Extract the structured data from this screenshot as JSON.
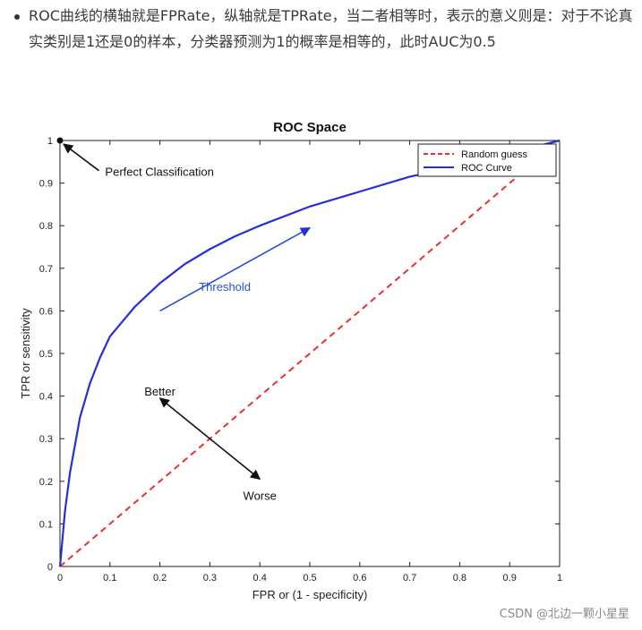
{
  "paragraph": {
    "text": "ROC曲线的横轴就是FPRate，纵轴就是TPRate，当二者相等时，表示的意义则是：对于不论真实类别是1还是0的样本，分类器预测为1的概率是相等的，此时AUC为0.5"
  },
  "watermark": "CSDN @北边一颗小星星",
  "chart_data": {
    "type": "line",
    "title": "ROC Space",
    "xlabel": "FPR or (1 - specificity)",
    "ylabel": "TPR or sensitivity",
    "xlim": [
      0,
      1
    ],
    "ylim": [
      0,
      1
    ],
    "x_ticks": [
      "0",
      "0.1",
      "0.2",
      "0.3",
      "0.4",
      "0.5",
      "0.6",
      "0.7",
      "0.8",
      "0.9",
      "1"
    ],
    "y_ticks": [
      "0",
      "0.1",
      "0.2",
      "0.3",
      "0.4",
      "0.5",
      "0.6",
      "0.7",
      "0.8",
      "0.9",
      "1"
    ],
    "grid": false,
    "legend_position": "top-right",
    "series": [
      {
        "name": "Random guess",
        "color": "#e8312f",
        "style": "dashed",
        "x": [
          0,
          1
        ],
        "y": [
          0,
          1
        ]
      },
      {
        "name": "ROC Curve",
        "color": "#2430d8",
        "style": "solid",
        "x": [
          0,
          0.01,
          0.02,
          0.04,
          0.06,
          0.08,
          0.1,
          0.15,
          0.2,
          0.25,
          0.3,
          0.35,
          0.4,
          0.5,
          0.6,
          0.7,
          0.8,
          0.9,
          1.0
        ],
        "y": [
          0,
          0.13,
          0.22,
          0.35,
          0.43,
          0.49,
          0.54,
          0.61,
          0.665,
          0.71,
          0.745,
          0.775,
          0.8,
          0.845,
          0.88,
          0.915,
          0.94,
          0.97,
          1.0
        ]
      }
    ],
    "annotations": [
      {
        "label": "Perfect Classification",
        "point": [
          0,
          1
        ],
        "text_at": [
          0.085,
          0.925
        ],
        "color": "#111111"
      },
      {
        "label": "Threshold",
        "arrow_from": [
          0.2,
          0.6
        ],
        "arrow_to": [
          0.5,
          0.795
        ],
        "text_at": [
          0.33,
          0.655
        ],
        "color": "#2a4fd8"
      },
      {
        "label": "Better",
        "arrow_from": [
          0.3,
          0.3
        ],
        "arrow_to": [
          0.2,
          0.395
        ],
        "text_at": [
          0.2,
          0.41
        ],
        "color": "#111111"
      },
      {
        "label": "Worse",
        "arrow_from": [
          0.3,
          0.3
        ],
        "arrow_to": [
          0.4,
          0.205
        ],
        "text_at": [
          0.4,
          0.165
        ],
        "color": "#111111"
      }
    ]
  }
}
